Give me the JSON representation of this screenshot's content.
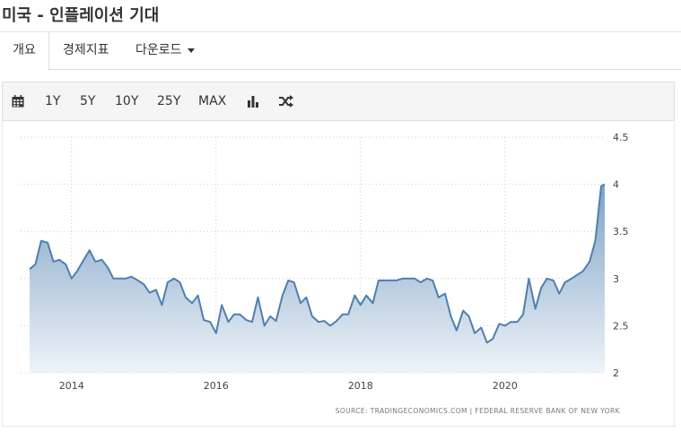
{
  "page": {
    "title": "미국 - 인플레이션 기대"
  },
  "tabs": [
    {
      "label": "개요",
      "active": true
    },
    {
      "label": "경제지표",
      "active": false
    },
    {
      "label": "다운로드",
      "active": false,
      "dropdown": true
    }
  ],
  "toolbar": {
    "calendar_icon": "calendar-icon",
    "ranges": [
      "1Y",
      "5Y",
      "10Y",
      "25Y",
      "MAX"
    ],
    "chart_type_icon": "bar-chart-icon",
    "compare_icon": "shuffle-icon"
  },
  "chart_data": {
    "type": "area",
    "x_ticks": [
      "2014",
      "2016",
      "2018",
      "2020"
    ],
    "y_ticks": [
      "2",
      "2.5",
      "3",
      "3.5",
      "4",
      "4.5"
    ],
    "ylim": [
      2,
      4.5
    ],
    "xlim": [
      2013.42,
      2021.38
    ],
    "grid": true,
    "y_axis_position": "right",
    "source": "SOURCE: TRADINGECONOMICS.COM  |  FEDERAL RESERVE BANK OF NEW YORK",
    "colors": {
      "line": "#4f7fb0",
      "fill_top": "#7fa3c6",
      "fill_bottom": "#eef3f8",
      "grid": "#cccccc"
    },
    "series": [
      {
        "x": [
          2013.42,
          2013.5,
          2013.58,
          2013.67,
          2013.75,
          2013.83,
          2013.92,
          2014.0,
          2014.08,
          2014.17,
          2014.25,
          2014.33,
          2014.42,
          2014.5,
          2014.58,
          2014.67,
          2014.75,
          2014.83,
          2014.92,
          2015.0,
          2015.08,
          2015.17,
          2015.25,
          2015.33,
          2015.42,
          2015.5,
          2015.58,
          2015.67,
          2015.75,
          2015.83,
          2015.92,
          2016.0,
          2016.08,
          2016.17,
          2016.25,
          2016.33,
          2016.42,
          2016.5,
          2016.58,
          2016.67,
          2016.75,
          2016.83,
          2016.92,
          2017.0,
          2017.08,
          2017.17,
          2017.25,
          2017.33,
          2017.42,
          2017.5,
          2017.58,
          2017.67,
          2017.75,
          2017.83,
          2017.92,
          2018.0,
          2018.08,
          2018.17,
          2018.25,
          2018.33,
          2018.42,
          2018.5,
          2018.58,
          2018.67,
          2018.75,
          2018.83,
          2018.92,
          2019.0,
          2019.08,
          2019.17,
          2019.25,
          2019.33,
          2019.42,
          2019.5,
          2019.58,
          2019.67,
          2019.75,
          2019.83,
          2019.92,
          2020.0,
          2020.08,
          2020.17,
          2020.25,
          2020.33,
          2020.42,
          2020.5,
          2020.58,
          2020.67,
          2020.75,
          2020.83,
          2020.92,
          2021.0,
          2021.08,
          2021.17,
          2021.25,
          2021.33,
          2021.38
        ],
        "values": [
          3.1,
          3.15,
          3.4,
          3.38,
          3.18,
          3.2,
          3.15,
          3.0,
          3.08,
          3.2,
          3.3,
          3.18,
          3.2,
          3.12,
          3.0,
          3.0,
          3.0,
          3.02,
          2.98,
          2.94,
          2.85,
          2.88,
          2.72,
          2.96,
          3.0,
          2.96,
          2.8,
          2.74,
          2.82,
          2.56,
          2.54,
          2.42,
          2.72,
          2.54,
          2.62,
          2.62,
          2.56,
          2.54,
          2.8,
          2.5,
          2.6,
          2.55,
          2.82,
          2.98,
          2.96,
          2.74,
          2.8,
          2.6,
          2.54,
          2.55,
          2.5,
          2.55,
          2.62,
          2.62,
          2.82,
          2.72,
          2.82,
          2.74,
          2.98,
          2.98,
          2.98,
          2.98,
          3.0,
          3.0,
          3.0,
          2.96,
          3.0,
          2.98,
          2.8,
          2.84,
          2.6,
          2.45,
          2.66,
          2.6,
          2.42,
          2.48,
          2.32,
          2.36,
          2.52,
          2.5,
          2.54,
          2.54,
          2.62,
          3.0,
          2.68,
          2.9,
          3.0,
          2.98,
          2.84,
          2.96,
          3.0,
          3.04,
          3.08,
          3.18,
          3.4,
          3.98,
          4.0
        ]
      }
    ]
  }
}
